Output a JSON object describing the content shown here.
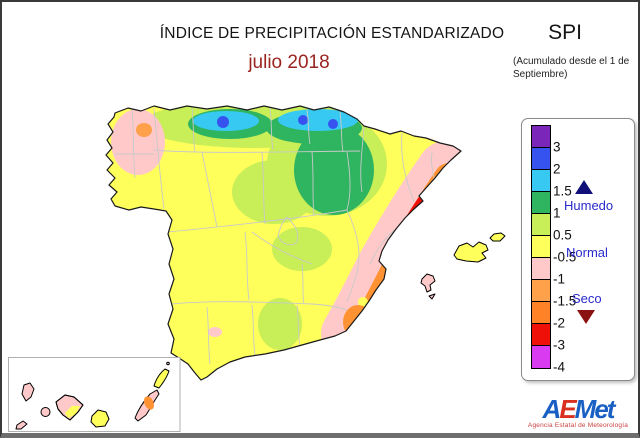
{
  "header": {
    "title": "ÍNDICE DE PRECIPITACIÓN ESTANDARIZADO",
    "period": "julio 2018",
    "index_abbr": "SPI",
    "accumulation_note": "(Acumulado desde el 1 de Septiembre)"
  },
  "legend": {
    "ticks": [
      "3",
      "2",
      "1.5",
      "1",
      "0.5",
      "-0.5",
      "-1",
      "-1.5",
      "-2",
      "-3",
      "-4"
    ],
    "colors": [
      "#7a26b8",
      "#3653f0",
      "#38c9f2",
      "#2fb45f",
      "#c8ee58",
      "#ffff5c",
      "#ffc9c9",
      "#ffa04a",
      "#ff8326",
      "#ef1007",
      "#d93bf0"
    ],
    "zones": {
      "wet": "Humedo",
      "normal": "Normal",
      "dry": "Seco"
    },
    "zone_text_color": "#2a2acc",
    "wet_marker_color": "#101078",
    "dry_marker_color": "#8b1212"
  },
  "map": {
    "base_color": "#ffff5c",
    "sea_color": "#ffffff",
    "coast_color": "#1a1a1a",
    "province_border_color": "#c9c9c9",
    "regions": [
      {
        "name": "west-galicia",
        "spi_class": "-1 a -0.5",
        "color": "#ffc9c9"
      },
      {
        "name": "west-galicia-core",
        "spi_class": "-1.5 a -1",
        "color": "#ffa04a"
      },
      {
        "name": "asturias-coast",
        "spi_class": "1.5 a 2",
        "color": "#38c9f2"
      },
      {
        "name": "asturias-coast-core",
        "spi_class": "2 a 3",
        "color": "#3653f0"
      },
      {
        "name": "basque-coast",
        "spi_class": "1.5 a 2",
        "color": "#38c9f2"
      },
      {
        "name": "basque-coast-cores",
        "spi_class": "2 a 3",
        "color": "#3653f0"
      },
      {
        "name": "cantabria-navarra-rioja",
        "spi_class": "1 a 1.5",
        "color": "#2fb45f"
      },
      {
        "name": "north-meseta-band",
        "spi_class": "0.5 a 1",
        "color": "#c8ee58"
      },
      {
        "name": "center-and-jaen-patches",
        "spi_class": "0.5 a 1",
        "color": "#c8ee58"
      },
      {
        "name": "east-coast-band",
        "spi_class": "-1 a -0.5",
        "color": "#ffc9c9"
      },
      {
        "name": "castellon-valencia-band",
        "spi_class": "-2 a -1.5",
        "color": "#ff8326"
      },
      {
        "name": "castellon-core",
        "spi_class": "-3 a -2",
        "color": "#ef1007"
      },
      {
        "name": "murcia-alicante-spot",
        "spi_class": "-2 a -1.5",
        "color": "#ff8326"
      },
      {
        "name": "girona-spot",
        "spi_class": "-1 a -0.5",
        "color": "#ffc9c9"
      },
      {
        "name": "sevilla-spot",
        "spi_class": "-1 a -0.5",
        "color": "#ffc9c9"
      },
      {
        "name": "mallorca-menorca",
        "spi_class": "-0.5 a 0.5",
        "color": "#ffff5c"
      },
      {
        "name": "ibiza",
        "spi_class": "-1 a -0.5",
        "color": "#ffc9c9"
      },
      {
        "name": "canarias-west",
        "spi_class": "-1 a -0.5",
        "color": "#ffc9c9"
      },
      {
        "name": "fuerteventura-core",
        "spi_class": "-1.5 a -1",
        "color": "#ffa04a"
      },
      {
        "name": "gran-canaria-lanzarote",
        "spi_class": "-0.5 a 0.5",
        "color": "#ffff5c"
      }
    ]
  },
  "logo": {
    "letters": [
      "A",
      "E",
      "M",
      "e",
      "t"
    ],
    "tagline": "Agencia Estatal de Meteorología"
  }
}
